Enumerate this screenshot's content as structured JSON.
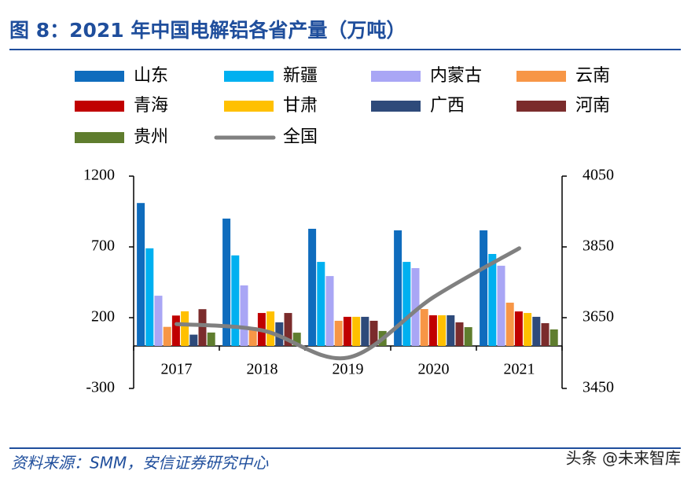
{
  "chart_data": {
    "type": "bar",
    "title": "图 8：2021 年中国电解铝各省产量（万吨）",
    "categories": [
      "2017",
      "2018",
      "2019",
      "2020",
      "2021"
    ],
    "series": [
      {
        "name": "山东",
        "color": "#0f6cbd",
        "values": [
          1010,
          900,
          828,
          817,
          817
        ]
      },
      {
        "name": "新疆",
        "color": "#00b0f0",
        "values": [
          690,
          640,
          594,
          594,
          650
        ]
      },
      {
        "name": "内蒙古",
        "color": "#a9a6f5",
        "values": [
          355,
          428,
          494,
          550,
          567
        ]
      },
      {
        "name": "云南",
        "color": "#f79646",
        "values": [
          135,
          133,
          178,
          261,
          306
        ]
      },
      {
        "name": "青海",
        "color": "#c00000",
        "values": [
          215,
          233,
          206,
          217,
          244
        ]
      },
      {
        "name": "甘肃",
        "color": "#ffc000",
        "values": [
          245,
          244,
          206,
          217,
          233
        ]
      },
      {
        "name": "广西",
        "color": "#2e4a7a",
        "values": [
          80,
          167,
          206,
          217,
          206
        ]
      },
      {
        "name": "河南",
        "color": "#7b2c2c",
        "values": [
          260,
          233,
          178,
          167,
          161
        ]
      },
      {
        "name": "贵州",
        "color": "#5f7d2e",
        "values": [
          95,
          94,
          106,
          133,
          117
        ]
      },
      {
        "name": "全国",
        "color": "#808080",
        "type": "line",
        "axis": "y2",
        "values": [
          3632,
          3614,
          3537,
          3708,
          3846
        ]
      }
    ],
    "ylim": [
      -300,
      1200
    ],
    "yticks": [
      -300,
      200,
      700,
      1200
    ],
    "y2lim": [
      3450,
      4050
    ],
    "y2ticks": [
      3450,
      3650,
      3850,
      4050
    ],
    "source": "资料来源：SMM，安信证券研究中心",
    "watermark": "头条 @未来智库"
  }
}
